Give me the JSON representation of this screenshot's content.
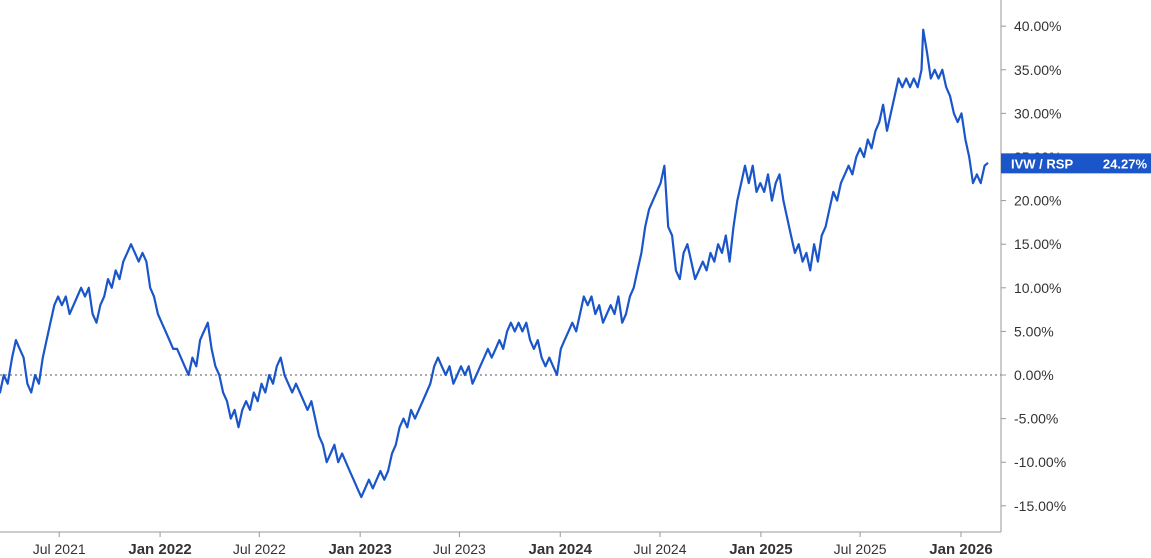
{
  "chart_data": {
    "type": "line",
    "title": "",
    "xlabel": "",
    "ylabel": "",
    "x_ticks": [
      {
        "date": "2021-07-01",
        "label": "Jul 2021",
        "major": false
      },
      {
        "date": "2022-01-01",
        "label": "Jan 2022",
        "major": true
      },
      {
        "date": "2022-07-01",
        "label": "Jul 2022",
        "major": false
      },
      {
        "date": "2023-01-01",
        "label": "Jan 2023",
        "major": true
      },
      {
        "date": "2023-07-01",
        "label": "Jul 2023",
        "major": false
      },
      {
        "date": "2024-01-01",
        "label": "Jan 2024",
        "major": true
      },
      {
        "date": "2024-07-01",
        "label": "Jul 2024",
        "major": false
      },
      {
        "date": "2025-01-01",
        "label": "Jan 2025",
        "major": true
      },
      {
        "date": "2025-07-01",
        "label": "Jul 2025",
        "major": false
      },
      {
        "date": "2026-01-01",
        "label": "Jan 2026",
        "major": true
      }
    ],
    "xlim": [
      "2021-03-15",
      "2026-03-15"
    ],
    "ylim": [
      -0.18,
      0.43
    ],
    "y_ticks": [
      -0.15,
      -0.1,
      -0.05,
      0.0,
      0.05,
      0.1,
      0.15,
      0.2,
      0.25,
      0.3,
      0.35,
      0.4
    ],
    "y_tick_labels": [
      "-15.00%",
      "-10.00%",
      "-5.00%",
      "0.00%",
      "5.00%",
      "10.00%",
      "15.00%",
      "20.00%",
      "25.00%",
      "30.00%",
      "35.00%",
      "40.00%"
    ],
    "zero_line": true,
    "grid": false,
    "series": [
      {
        "name": "IVW / RSP",
        "color": "#1a56c9",
        "last_value_label": "24.27%",
        "points": [
          [
            "2021-03-15",
            -0.02
          ],
          [
            "2021-03-22",
            0.0
          ],
          [
            "2021-03-29",
            -0.01
          ],
          [
            "2021-04-06",
            0.02
          ],
          [
            "2021-04-13",
            0.04
          ],
          [
            "2021-04-20",
            0.03
          ],
          [
            "2021-04-27",
            0.02
          ],
          [
            "2021-05-04",
            -0.01
          ],
          [
            "2021-05-11",
            -0.02
          ],
          [
            "2021-05-18",
            0.0
          ],
          [
            "2021-05-25",
            -0.01
          ],
          [
            "2021-06-01",
            0.02
          ],
          [
            "2021-06-08",
            0.04
          ],
          [
            "2021-06-15",
            0.06
          ],
          [
            "2021-06-22",
            0.08
          ],
          [
            "2021-06-29",
            0.09
          ],
          [
            "2021-07-06",
            0.08
          ],
          [
            "2021-07-13",
            0.09
          ],
          [
            "2021-07-20",
            0.07
          ],
          [
            "2021-07-27",
            0.08
          ],
          [
            "2021-08-03",
            0.09
          ],
          [
            "2021-08-10",
            0.1
          ],
          [
            "2021-08-17",
            0.09
          ],
          [
            "2021-08-24",
            0.1
          ],
          [
            "2021-08-31",
            0.07
          ],
          [
            "2021-09-07",
            0.06
          ],
          [
            "2021-09-14",
            0.08
          ],
          [
            "2021-09-21",
            0.09
          ],
          [
            "2021-09-28",
            0.11
          ],
          [
            "2021-10-05",
            0.1
          ],
          [
            "2021-10-12",
            0.12
          ],
          [
            "2021-10-19",
            0.11
          ],
          [
            "2021-10-26",
            0.13
          ],
          [
            "2021-11-02",
            0.14
          ],
          [
            "2021-11-09",
            0.15
          ],
          [
            "2021-11-16",
            0.14
          ],
          [
            "2021-11-23",
            0.13
          ],
          [
            "2021-11-30",
            0.14
          ],
          [
            "2021-12-07",
            0.13
          ],
          [
            "2021-12-14",
            0.1
          ],
          [
            "2021-12-21",
            0.09
          ],
          [
            "2021-12-28",
            0.07
          ],
          [
            "2022-01-04",
            0.06
          ],
          [
            "2022-01-11",
            0.05
          ],
          [
            "2022-01-18",
            0.04
          ],
          [
            "2022-01-25",
            0.03
          ],
          [
            "2022-02-01",
            0.03
          ],
          [
            "2022-02-08",
            0.02
          ],
          [
            "2022-02-15",
            0.01
          ],
          [
            "2022-02-22",
            0.0
          ],
          [
            "2022-03-01",
            0.02
          ],
          [
            "2022-03-08",
            0.01
          ],
          [
            "2022-03-15",
            0.04
          ],
          [
            "2022-03-22",
            0.05
          ],
          [
            "2022-03-29",
            0.06
          ],
          [
            "2022-04-05",
            0.03
          ],
          [
            "2022-04-12",
            0.01
          ],
          [
            "2022-04-19",
            0.0
          ],
          [
            "2022-04-26",
            -0.02
          ],
          [
            "2022-05-03",
            -0.03
          ],
          [
            "2022-05-10",
            -0.05
          ],
          [
            "2022-05-17",
            -0.04
          ],
          [
            "2022-05-24",
            -0.06
          ],
          [
            "2022-05-31",
            -0.04
          ],
          [
            "2022-06-07",
            -0.03
          ],
          [
            "2022-06-14",
            -0.04
          ],
          [
            "2022-06-21",
            -0.02
          ],
          [
            "2022-06-28",
            -0.03
          ],
          [
            "2022-07-05",
            -0.01
          ],
          [
            "2022-07-12",
            -0.02
          ],
          [
            "2022-07-19",
            0.0
          ],
          [
            "2022-07-26",
            -0.01
          ],
          [
            "2022-08-02",
            0.01
          ],
          [
            "2022-08-09",
            0.02
          ],
          [
            "2022-08-16",
            0.0
          ],
          [
            "2022-08-23",
            -0.01
          ],
          [
            "2022-08-30",
            -0.02
          ],
          [
            "2022-09-06",
            -0.01
          ],
          [
            "2022-09-13",
            -0.02
          ],
          [
            "2022-09-20",
            -0.03
          ],
          [
            "2022-09-27",
            -0.04
          ],
          [
            "2022-10-04",
            -0.03
          ],
          [
            "2022-10-11",
            -0.05
          ],
          [
            "2022-10-18",
            -0.07
          ],
          [
            "2022-10-25",
            -0.08
          ],
          [
            "2022-11-01",
            -0.1
          ],
          [
            "2022-11-08",
            -0.09
          ],
          [
            "2022-11-15",
            -0.08
          ],
          [
            "2022-11-22",
            -0.1
          ],
          [
            "2022-11-29",
            -0.09
          ],
          [
            "2022-12-06",
            -0.1
          ],
          [
            "2022-12-13",
            -0.11
          ],
          [
            "2022-12-20",
            -0.12
          ],
          [
            "2022-12-27",
            -0.13
          ],
          [
            "2023-01-03",
            -0.14
          ],
          [
            "2023-01-10",
            -0.13
          ],
          [
            "2023-01-17",
            -0.12
          ],
          [
            "2023-01-24",
            -0.13
          ],
          [
            "2023-01-31",
            -0.12
          ],
          [
            "2023-02-07",
            -0.11
          ],
          [
            "2023-02-14",
            -0.12
          ],
          [
            "2023-02-21",
            -0.11
          ],
          [
            "2023-02-28",
            -0.09
          ],
          [
            "2023-03-07",
            -0.08
          ],
          [
            "2023-03-14",
            -0.06
          ],
          [
            "2023-03-21",
            -0.05
          ],
          [
            "2023-03-28",
            -0.06
          ],
          [
            "2023-04-04",
            -0.04
          ],
          [
            "2023-04-11",
            -0.05
          ],
          [
            "2023-04-18",
            -0.04
          ],
          [
            "2023-04-25",
            -0.03
          ],
          [
            "2023-05-02",
            -0.02
          ],
          [
            "2023-05-09",
            -0.01
          ],
          [
            "2023-05-16",
            0.01
          ],
          [
            "2023-05-23",
            0.02
          ],
          [
            "2023-05-30",
            0.01
          ],
          [
            "2023-06-06",
            0.0
          ],
          [
            "2023-06-13",
            0.01
          ],
          [
            "2023-06-20",
            -0.01
          ],
          [
            "2023-06-27",
            0.0
          ],
          [
            "2023-07-04",
            0.01
          ],
          [
            "2023-07-11",
            0.0
          ],
          [
            "2023-07-18",
            0.01
          ],
          [
            "2023-07-25",
            -0.01
          ],
          [
            "2023-08-01",
            0.0
          ],
          [
            "2023-08-08",
            0.01
          ],
          [
            "2023-08-15",
            0.02
          ],
          [
            "2023-08-22",
            0.03
          ],
          [
            "2023-08-29",
            0.02
          ],
          [
            "2023-09-05",
            0.03
          ],
          [
            "2023-09-12",
            0.04
          ],
          [
            "2023-09-19",
            0.03
          ],
          [
            "2023-09-26",
            0.05
          ],
          [
            "2023-10-03",
            0.06
          ],
          [
            "2023-10-10",
            0.05
          ],
          [
            "2023-10-17",
            0.06
          ],
          [
            "2023-10-24",
            0.05
          ],
          [
            "2023-10-31",
            0.06
          ],
          [
            "2023-11-07",
            0.04
          ],
          [
            "2023-11-14",
            0.03
          ],
          [
            "2023-11-21",
            0.04
          ],
          [
            "2023-11-28",
            0.02
          ],
          [
            "2023-12-05",
            0.01
          ],
          [
            "2023-12-12",
            0.02
          ],
          [
            "2023-12-19",
            0.01
          ],
          [
            "2023-12-26",
            0.0
          ],
          [
            "2024-01-02",
            0.03
          ],
          [
            "2024-01-09",
            0.04
          ],
          [
            "2024-01-16",
            0.05
          ],
          [
            "2024-01-23",
            0.06
          ],
          [
            "2024-01-30",
            0.05
          ],
          [
            "2024-02-06",
            0.07
          ],
          [
            "2024-02-13",
            0.09
          ],
          [
            "2024-02-20",
            0.08
          ],
          [
            "2024-02-27",
            0.09
          ],
          [
            "2024-03-05",
            0.07
          ],
          [
            "2024-03-12",
            0.08
          ],
          [
            "2024-03-19",
            0.06
          ],
          [
            "2024-03-26",
            0.07
          ],
          [
            "2024-04-02",
            0.08
          ],
          [
            "2024-04-09",
            0.07
          ],
          [
            "2024-04-16",
            0.09
          ],
          [
            "2024-04-23",
            0.06
          ],
          [
            "2024-04-30",
            0.07
          ],
          [
            "2024-05-07",
            0.09
          ],
          [
            "2024-05-14",
            0.1
          ],
          [
            "2024-05-21",
            0.12
          ],
          [
            "2024-05-28",
            0.14
          ],
          [
            "2024-06-04",
            0.17
          ],
          [
            "2024-06-11",
            0.19
          ],
          [
            "2024-06-18",
            0.2
          ],
          [
            "2024-06-25",
            0.21
          ],
          [
            "2024-07-02",
            0.22
          ],
          [
            "2024-07-09",
            0.24
          ],
          [
            "2024-07-16",
            0.17
          ],
          [
            "2024-07-23",
            0.16
          ],
          [
            "2024-07-30",
            0.12
          ],
          [
            "2024-08-06",
            0.11
          ],
          [
            "2024-08-13",
            0.14
          ],
          [
            "2024-08-20",
            0.15
          ],
          [
            "2024-08-27",
            0.13
          ],
          [
            "2024-09-03",
            0.11
          ],
          [
            "2024-09-10",
            0.12
          ],
          [
            "2024-09-17",
            0.13
          ],
          [
            "2024-09-24",
            0.12
          ],
          [
            "2024-10-01",
            0.14
          ],
          [
            "2024-10-08",
            0.13
          ],
          [
            "2024-10-15",
            0.15
          ],
          [
            "2024-10-22",
            0.14
          ],
          [
            "2024-10-29",
            0.16
          ],
          [
            "2024-11-05",
            0.13
          ],
          [
            "2024-11-12",
            0.17
          ],
          [
            "2024-11-19",
            0.2
          ],
          [
            "2024-11-26",
            0.22
          ],
          [
            "2024-12-03",
            0.24
          ],
          [
            "2024-12-10",
            0.22
          ],
          [
            "2024-12-17",
            0.24
          ],
          [
            "2024-12-24",
            0.21
          ],
          [
            "2024-12-31",
            0.22
          ],
          [
            "2025-01-07",
            0.21
          ],
          [
            "2025-01-14",
            0.23
          ],
          [
            "2025-01-21",
            0.2
          ],
          [
            "2025-01-28",
            0.22
          ],
          [
            "2025-02-04",
            0.23
          ],
          [
            "2025-02-11",
            0.2
          ],
          [
            "2025-02-18",
            0.18
          ],
          [
            "2025-02-25",
            0.16
          ],
          [
            "2025-03-04",
            0.14
          ],
          [
            "2025-03-11",
            0.15
          ],
          [
            "2025-03-18",
            0.13
          ],
          [
            "2025-03-25",
            0.14
          ],
          [
            "2025-04-01",
            0.12
          ],
          [
            "2025-04-08",
            0.15
          ],
          [
            "2025-04-15",
            0.13
          ],
          [
            "2025-04-22",
            0.16
          ],
          [
            "2025-04-29",
            0.17
          ],
          [
            "2025-05-06",
            0.19
          ],
          [
            "2025-05-13",
            0.21
          ],
          [
            "2025-05-20",
            0.2
          ],
          [
            "2025-05-27",
            0.22
          ],
          [
            "2025-06-03",
            0.23
          ],
          [
            "2025-06-10",
            0.24
          ],
          [
            "2025-06-17",
            0.23
          ],
          [
            "2025-06-24",
            0.25
          ],
          [
            "2025-07-01",
            0.26
          ],
          [
            "2025-07-08",
            0.25
          ],
          [
            "2025-07-15",
            0.27
          ],
          [
            "2025-07-22",
            0.26
          ],
          [
            "2025-07-29",
            0.28
          ],
          [
            "2025-08-05",
            0.29
          ],
          [
            "2025-08-12",
            0.31
          ],
          [
            "2025-08-19",
            0.28
          ],
          [
            "2025-08-26",
            0.3
          ],
          [
            "2025-09-02",
            0.32
          ],
          [
            "2025-09-09",
            0.34
          ],
          [
            "2025-09-16",
            0.33
          ],
          [
            "2025-09-23",
            0.34
          ],
          [
            "2025-09-30",
            0.33
          ],
          [
            "2025-10-07",
            0.34
          ],
          [
            "2025-10-14",
            0.33
          ],
          [
            "2025-10-21",
            0.35
          ],
          [
            "2025-10-24",
            0.396
          ],
          [
            "2025-10-31",
            0.37
          ],
          [
            "2025-11-07",
            0.34
          ],
          [
            "2025-11-14",
            0.35
          ],
          [
            "2025-11-21",
            0.34
          ],
          [
            "2025-11-28",
            0.35
          ],
          [
            "2025-12-05",
            0.33
          ],
          [
            "2025-12-12",
            0.32
          ],
          [
            "2025-12-19",
            0.3
          ],
          [
            "2025-12-26",
            0.29
          ],
          [
            "2026-01-02",
            0.3
          ],
          [
            "2026-01-09",
            0.27
          ],
          [
            "2026-01-16",
            0.25
          ],
          [
            "2026-01-23",
            0.22
          ],
          [
            "2026-01-30",
            0.23
          ],
          [
            "2026-02-06",
            0.22
          ],
          [
            "2026-02-13",
            0.24
          ],
          [
            "2026-02-18",
            0.2427
          ]
        ]
      }
    ]
  }
}
